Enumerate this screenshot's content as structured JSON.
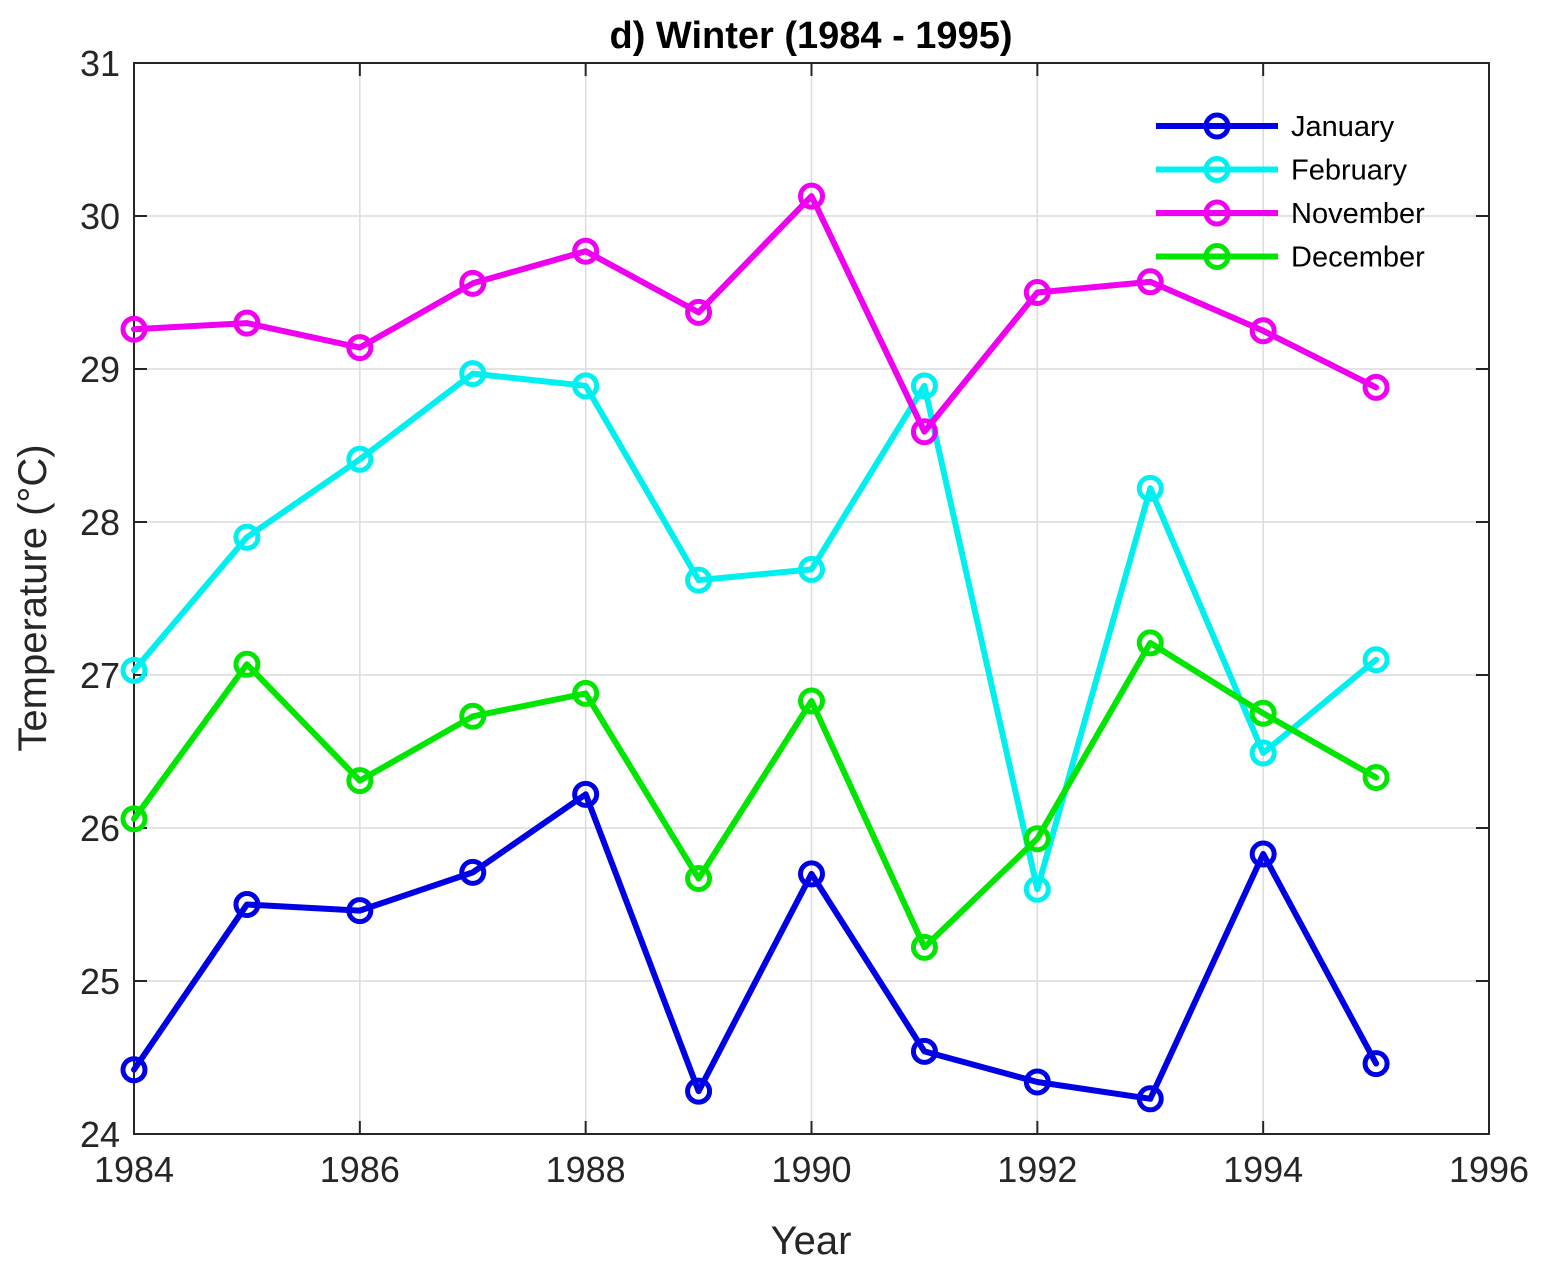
{
  "chart_data": {
    "type": "line",
    "title": "d) Winter (1984 - 1995)",
    "xlabel": "Year",
    "ylabel": "Temperature (°C)",
    "xlim": [
      1984,
      1996
    ],
    "ylim": [
      24,
      31
    ],
    "xticks": [
      "1984",
      "1986",
      "1988",
      "1990",
      "1992",
      "1994",
      "1996"
    ],
    "yticks": [
      "24",
      "25",
      "26",
      "27",
      "28",
      "29",
      "30",
      "31"
    ],
    "grid": true,
    "legend_position": "top-right",
    "x": [
      1984,
      1985,
      1986,
      1987,
      1988,
      1989,
      1990,
      1991,
      1992,
      1993,
      1994,
      1995
    ],
    "series": [
      {
        "name": "January",
        "color": "#0000e6",
        "values": [
          24.42,
          25.5,
          25.46,
          25.71,
          26.22,
          24.28,
          25.7,
          24.54,
          24.34,
          24.23,
          25.83,
          24.46
        ]
      },
      {
        "name": "February",
        "color": "#00f0f0",
        "values": [
          27.03,
          27.9,
          28.41,
          28.97,
          28.89,
          27.62,
          27.69,
          28.89,
          25.6,
          28.22,
          26.49,
          27.1
        ]
      },
      {
        "name": "November",
        "color": "#f000f0",
        "values": [
          29.26,
          29.3,
          29.14,
          29.56,
          29.77,
          29.37,
          30.13,
          28.59,
          29.5,
          29.57,
          29.25,
          28.88
        ]
      },
      {
        "name": "December",
        "color": "#00e600",
        "values": [
          26.06,
          27.07,
          26.31,
          26.73,
          26.88,
          25.67,
          26.83,
          25.22,
          25.93,
          27.21,
          26.75,
          26.33
        ]
      }
    ]
  }
}
